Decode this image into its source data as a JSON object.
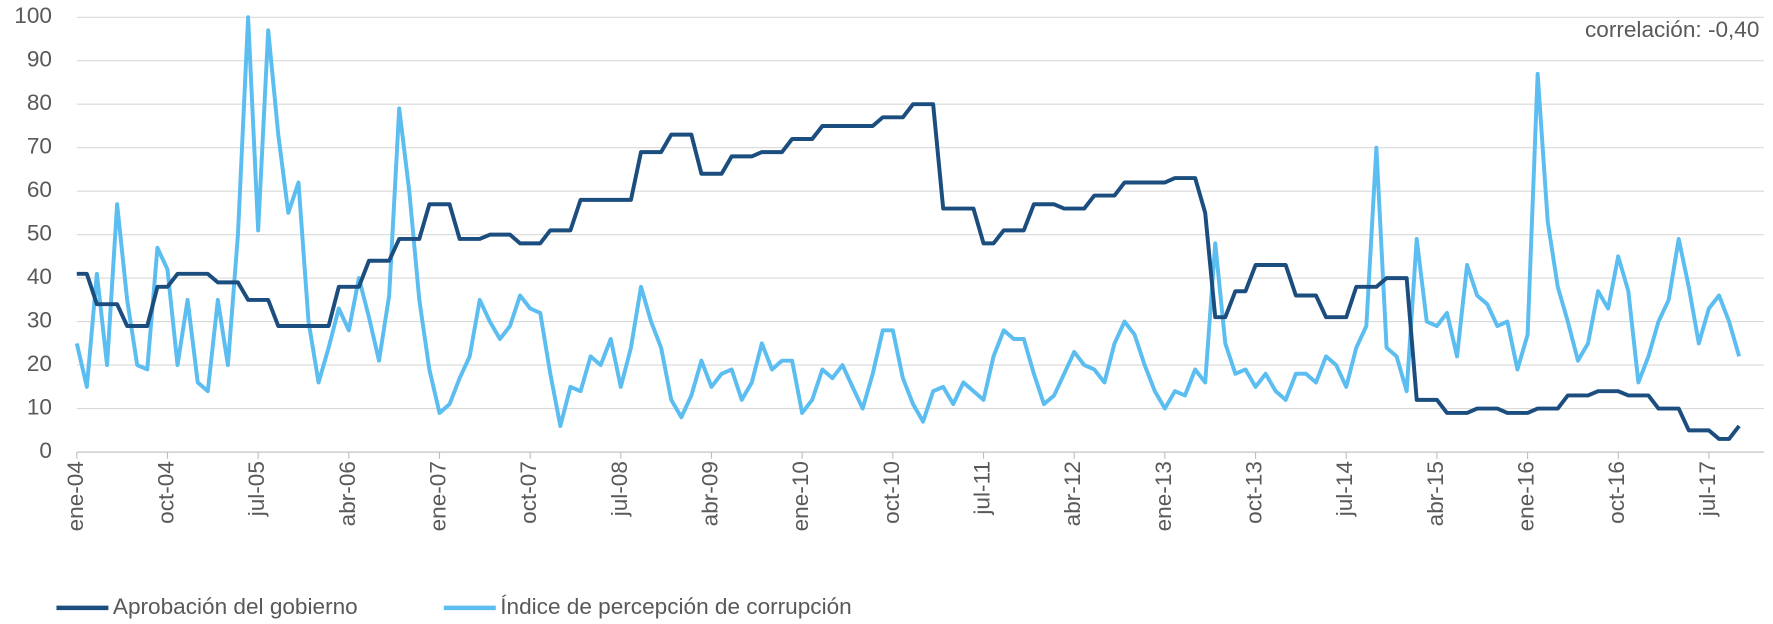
{
  "chart_data": {
    "type": "line",
    "annotation": "correlación: -0,40",
    "categories": [
      "ene-04",
      null,
      null,
      null,
      null,
      null,
      null,
      null,
      null,
      "oct-04",
      null,
      null,
      null,
      null,
      null,
      null,
      null,
      null,
      "jul-05",
      null,
      null,
      null,
      null,
      null,
      null,
      null,
      null,
      "abr-06",
      null,
      null,
      null,
      null,
      null,
      null,
      null,
      null,
      "ene-07",
      null,
      null,
      null,
      null,
      null,
      null,
      null,
      null,
      "oct-07",
      null,
      null,
      null,
      null,
      null,
      null,
      null,
      null,
      "jul-08",
      null,
      null,
      null,
      null,
      null,
      null,
      null,
      null,
      "abr-09",
      null,
      null,
      null,
      null,
      null,
      null,
      null,
      null,
      "ene-10",
      null,
      null,
      null,
      null,
      null,
      null,
      null,
      null,
      "oct-10",
      null,
      null,
      null,
      null,
      null,
      null,
      null,
      null,
      "jul-11",
      null,
      null,
      null,
      null,
      null,
      null,
      null,
      null,
      "abr-12",
      null,
      null,
      null,
      null,
      null,
      null,
      null,
      null,
      "ene-13",
      null,
      null,
      null,
      null,
      null,
      null,
      null,
      null,
      "oct-13",
      null,
      null,
      null,
      null,
      null,
      null,
      null,
      null,
      "jul-14",
      null,
      null,
      null,
      null,
      null,
      null,
      null,
      null,
      "abr-15",
      null,
      null,
      null,
      null,
      null,
      null,
      null,
      null,
      "ene-16",
      null,
      null,
      null,
      null,
      null,
      null,
      null,
      null,
      "oct-16",
      null,
      null,
      null,
      null,
      null,
      null,
      null,
      null,
      "jul-17",
      null,
      null,
      null
    ],
    "series": [
      {
        "name": "Aprobación del gobierno",
        "color": "#1b4e7e",
        "values": [
          41,
          41,
          34,
          34,
          34,
          29,
          29,
          29,
          38,
          38,
          41,
          41,
          41,
          41,
          39,
          39,
          39,
          35,
          35,
          35,
          29,
          29,
          29,
          29,
          29,
          29,
          38,
          38,
          38,
          44,
          44,
          44,
          49,
          49,
          49,
          57,
          57,
          57,
          49,
          49,
          49,
          50,
          50,
          50,
          48,
          48,
          48,
          51,
          51,
          51,
          58,
          58,
          58,
          58,
          58,
          58,
          69,
          69,
          69,
          73,
          73,
          73,
          64,
          64,
          64,
          68,
          68,
          68,
          69,
          69,
          69,
          72,
          72,
          72,
          75,
          75,
          75,
          75,
          75,
          75,
          77,
          77,
          77,
          80,
          80,
          80,
          56,
          56,
          56,
          56,
          48,
          48,
          51,
          51,
          51,
          57,
          57,
          57,
          56,
          56,
          56,
          59,
          59,
          59,
          62,
          62,
          62,
          62,
          62,
          63,
          63,
          63,
          55,
          31,
          31,
          37,
          37,
          43,
          43,
          43,
          43,
          36,
          36,
          36,
          31,
          31,
          31,
          38,
          38,
          38,
          40,
          40,
          40,
          12,
          12,
          12,
          9,
          9,
          9,
          10,
          10,
          10,
          9,
          9,
          9,
          10,
          10,
          10,
          13,
          13,
          13,
          14,
          14,
          14,
          13,
          13,
          13,
          10,
          10,
          10,
          5,
          5,
          5,
          3,
          3,
          6
        ]
      },
      {
        "name": "Índice de percepción de corrupción",
        "color": "#5bbdf0",
        "values": [
          25,
          15,
          41,
          20,
          57,
          35,
          20,
          19,
          47,
          42,
          20,
          35,
          16,
          14,
          35,
          20,
          50,
          100,
          51,
          97,
          73,
          55,
          62,
          30,
          16,
          24,
          33,
          28,
          40,
          31,
          21,
          36,
          79,
          60,
          35,
          19,
          9,
          11,
          17,
          22,
          35,
          30,
          26,
          29,
          36,
          33,
          32,
          18,
          6,
          15,
          14,
          22,
          20,
          26,
          15,
          24,
          38,
          30,
          24,
          12,
          8,
          13,
          21,
          15,
          18,
          19,
          12,
          16,
          25,
          19,
          21,
          21,
          9,
          12,
          19,
          17,
          20,
          15,
          10,
          18,
          28,
          28,
          17,
          11,
          7,
          14,
          15,
          11,
          16,
          14,
          12,
          22,
          28,
          26,
          26,
          18,
          11,
          13,
          18,
          23,
          20,
          19,
          16,
          25,
          30,
          27,
          20,
          14,
          10,
          14,
          13,
          19,
          16,
          48,
          25,
          18,
          19,
          15,
          18,
          14,
          12,
          18,
          18,
          16,
          22,
          20,
          15,
          24,
          29,
          70,
          24,
          22,
          14,
          49,
          30,
          29,
          32,
          22,
          43,
          36,
          34,
          29,
          30,
          19,
          27,
          87,
          53,
          38,
          30,
          21,
          25,
          37,
          33,
          45,
          37,
          16,
          22,
          30,
          35,
          49,
          38,
          25,
          33,
          36,
          30,
          22
        ]
      }
    ],
    "ylim": [
      0,
      100
    ],
    "yticks": [
      0,
      10,
      20,
      30,
      40,
      50,
      60,
      70,
      80,
      90,
      100
    ],
    "grid": true,
    "legend": "bottom-left"
  }
}
